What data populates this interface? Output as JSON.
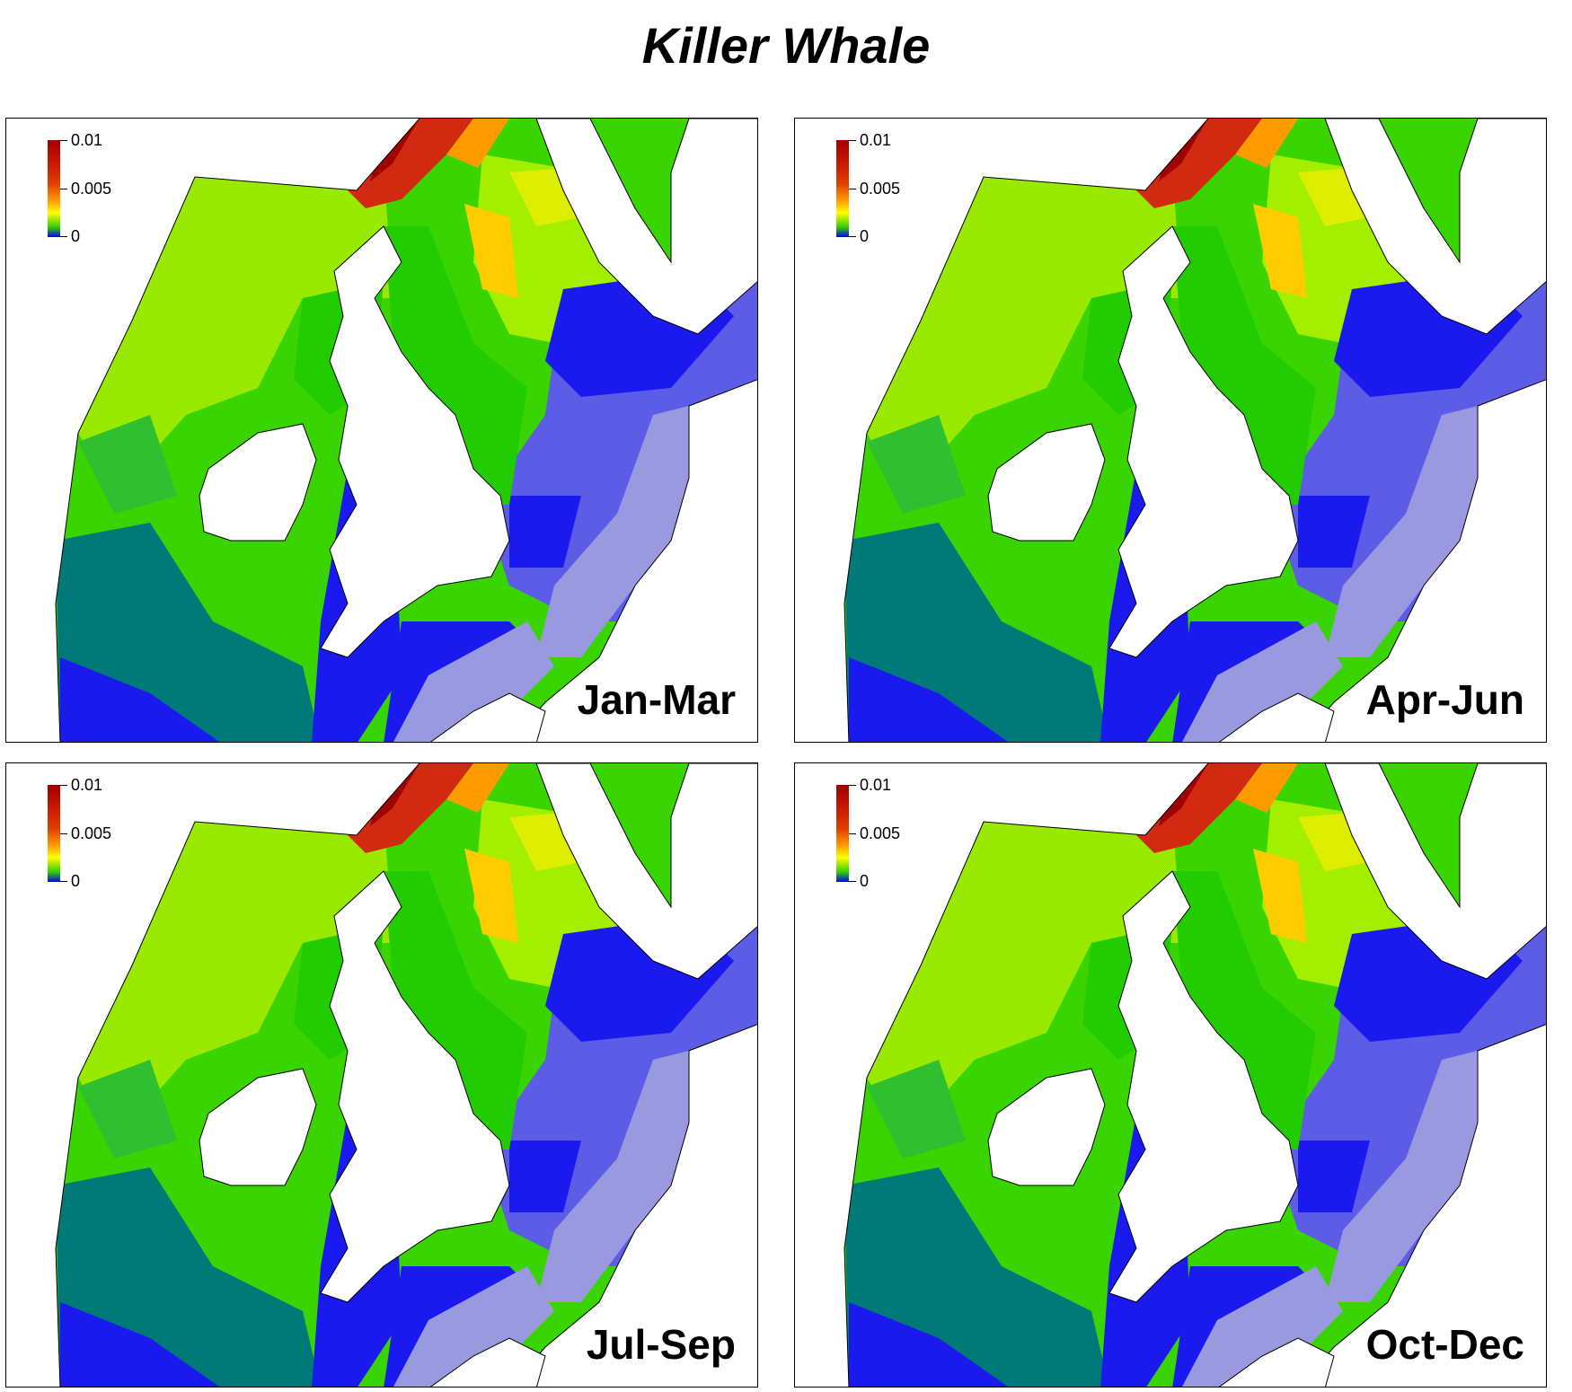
{
  "title": "Killer Whale",
  "legend": {
    "max": "0.01",
    "mid": "0.005",
    "min": "0"
  },
  "panels": [
    {
      "season": "Jan-Mar"
    },
    {
      "season": "Apr-Jun"
    },
    {
      "season": "Jul-Sep"
    },
    {
      "season": "Oct-Dec"
    }
  ],
  "colors": {
    "deep_blue": "#1a1aee",
    "light_blue": "#5c5ce6",
    "pale_blue": "#9999e0",
    "teal": "#007a78",
    "green": "#22cc00",
    "yellow_green": "#aaee00",
    "yellow": "#ffee00",
    "red": "#c01010",
    "land": "#ffffff"
  }
}
